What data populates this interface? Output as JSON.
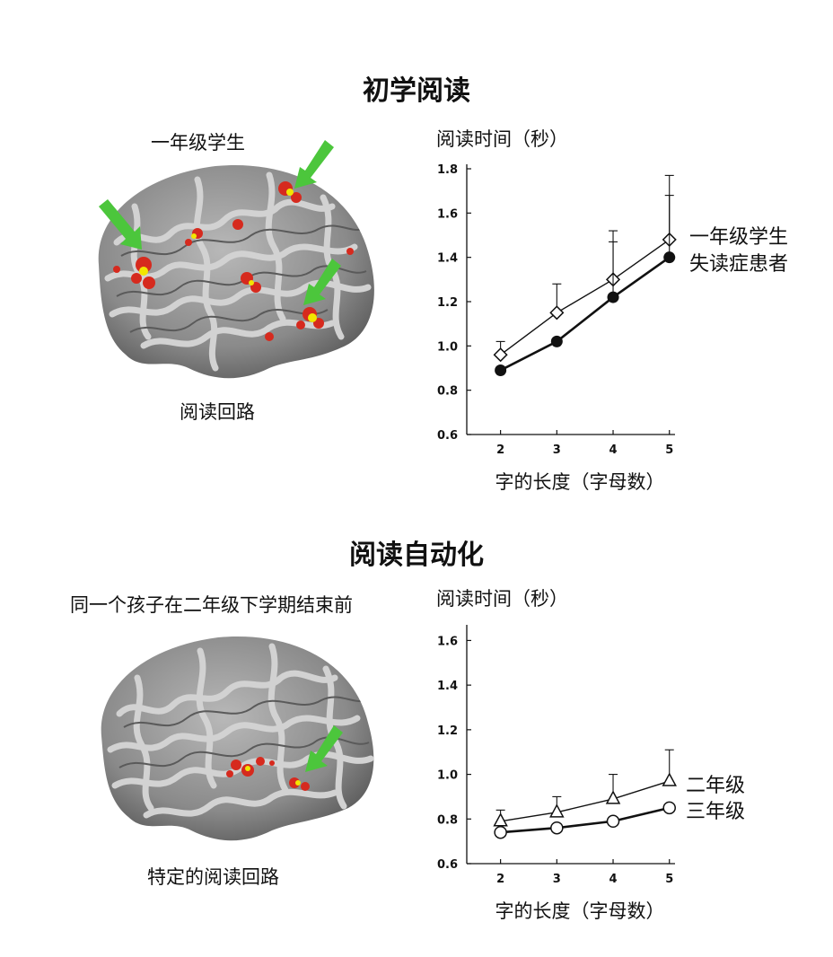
{
  "top": {
    "title": "初学阅读",
    "brain_caption_top": "一年级学生",
    "brain_caption_bottom": "阅读回路",
    "legend": [
      "一年级学生",
      "失读症患者"
    ]
  },
  "bottom": {
    "title": "阅读自动化",
    "brain_caption_top": "同一个孩子在二年级下学期结束前",
    "brain_caption_bottom": "特定的阅读回路",
    "legend": [
      "二年级",
      "三年级"
    ]
  },
  "chart_data": [
    {
      "type": "line",
      "title": "",
      "ylabel": "阅读时间（秒）",
      "xlabel": "字的长度（字母数）",
      "x": [
        2,
        3,
        4,
        5
      ],
      "xticks": [
        "2",
        "3",
        "4",
        "5"
      ],
      "ylim": [
        0.6,
        1.8
      ],
      "yticks": [
        "0.6",
        "0.8",
        "1.0",
        "1.2",
        "1.4",
        "1.6",
        "1.8"
      ],
      "series": [
        {
          "name": "一年级学生",
          "marker": "diamond-open",
          "values": [
            0.96,
            1.15,
            1.3,
            1.48
          ],
          "error_upper": [
            1.02,
            1.28,
            1.52,
            1.77
          ]
        },
        {
          "name": "失读症患者",
          "marker": "circle-filled",
          "values": [
            0.89,
            1.02,
            1.22,
            1.4
          ],
          "error_upper": [
            null,
            null,
            1.47,
            1.68
          ]
        }
      ],
      "grid": false
    },
    {
      "type": "line",
      "title": "",
      "ylabel": "阅读时间（秒）",
      "xlabel": "字的长度（字母数）",
      "x": [
        2,
        3,
        4,
        5
      ],
      "xticks": [
        "2",
        "3",
        "4",
        "5"
      ],
      "ylim": [
        0.6,
        1.65
      ],
      "yticks": [
        "0.6",
        "0.8",
        "1.0",
        "1.2",
        "1.4",
        "1.6"
      ],
      "series": [
        {
          "name": "二年级",
          "marker": "triangle-open",
          "values": [
            0.79,
            0.83,
            0.89,
            0.97
          ],
          "error_upper": [
            0.84,
            0.9,
            1.0,
            1.11
          ]
        },
        {
          "name": "三年级",
          "marker": "circle-open",
          "values": [
            0.74,
            0.76,
            0.79,
            0.85
          ],
          "error_upper": [
            null,
            null,
            null,
            null
          ]
        }
      ],
      "grid": false
    }
  ],
  "colors": {
    "brain_base": "#8f8f8f",
    "brain_light": "#c9c9c9",
    "brain_dark": "#555555",
    "activation_red": "#d62a1e",
    "activation_yellow": "#f2e600",
    "arrow_green": "#4cc63c"
  }
}
